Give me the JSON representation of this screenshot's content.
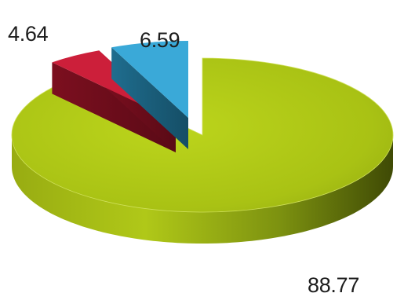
{
  "chart_data": {
    "type": "pie",
    "title": "",
    "series": [
      {
        "values": [
          88.77,
          4.64,
          6.59
        ],
        "labels": [
          "88.77",
          "4.64",
          "6.59"
        ],
        "colors": [
          "#a8c010",
          "#cc1f3a",
          "#3aa9d8"
        ]
      }
    ],
    "style": "3d-exploded",
    "legend": "none"
  }
}
